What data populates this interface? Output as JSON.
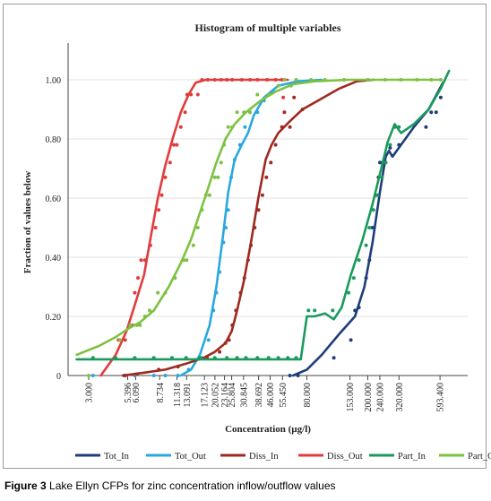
{
  "caption": {
    "label": "Figure 3",
    "text": "Lake Ellyn CFPs for zinc concentration inflow/outflow values"
  },
  "colors": {
    "Tot_In": "#1f3d7a",
    "Tot_Out": "#29a8e0",
    "Diss_In": "#9e2a20",
    "Diss_Out": "#e23b3b",
    "Part_In": "#1a9a5c",
    "Part_Out": "#7dc242"
  },
  "chart_data": {
    "type": "line",
    "title": "Histogram of multiple variables",
    "xlabel": "Concentration (µg/l)",
    "ylabel": "Fraction of values below",
    "x_scale": "log",
    "xlim": [
      2.2,
      900
    ],
    "ylim": [
      0,
      1.1
    ],
    "grid": "horizontal",
    "legend_position": "bottom",
    "x_ticks": [
      "3.000",
      "5.396",
      "6.090",
      "8.734",
      "11.318",
      "13.091",
      "17.123",
      "20.052",
      "23.164",
      "25.804",
      "30.845",
      "38.692",
      "46.000",
      "55.450",
      "80.000",
      "153.000",
      "200.000",
      "240.000",
      "320.000",
      "593.400"
    ],
    "x_tick_values": [
      3.0,
      5.396,
      6.09,
      8.734,
      11.318,
      13.091,
      17.123,
      20.052,
      23.164,
      25.804,
      30.845,
      38.692,
      46.0,
      55.45,
      80.0,
      153.0,
      200.0,
      240.0,
      320.0,
      593.4
    ],
    "y_ticks": [
      "0",
      "0.20",
      "0.40",
      "0.60",
      "0.80",
      "1.00"
    ],
    "y_tick_values": [
      0,
      0.2,
      0.4,
      0.6,
      0.8,
      1.0
    ],
    "series": [
      {
        "name": "Tot_In",
        "line": [
          [
            65,
            0
          ],
          [
            80,
            0.02
          ],
          [
            100,
            0.07
          ],
          [
            130,
            0.14
          ],
          [
            165,
            0.2
          ],
          [
            190,
            0.3
          ],
          [
            215,
            0.45
          ],
          [
            240,
            0.62
          ],
          [
            262,
            0.74
          ],
          [
            275,
            0.76
          ],
          [
            290,
            0.74
          ],
          [
            330,
            0.78
          ],
          [
            400,
            0.84
          ],
          [
            500,
            0.9
          ],
          [
            620,
            0.99
          ]
        ],
        "points": [
          [
            62,
            0
          ],
          [
            70,
            0
          ],
          [
            120,
            0.06
          ],
          [
            155,
            0.12
          ],
          [
            165,
            0.22
          ],
          [
            175,
            0.23
          ],
          [
            195,
            0.33
          ],
          [
            205,
            0.39
          ],
          [
            215,
            0.5
          ],
          [
            225,
            0.61
          ],
          [
            235,
            0.67
          ],
          [
            240,
            0.72
          ],
          [
            250,
            0.72
          ],
          [
            280,
            0.77
          ],
          [
            320,
            0.78
          ],
          [
            480,
            0.84
          ],
          [
            520,
            0.89
          ],
          [
            560,
            0.89
          ],
          [
            600,
            0.94
          ]
        ]
      },
      {
        "name": "Tot_Out",
        "line": [
          [
            12,
            0
          ],
          [
            14,
            0.02
          ],
          [
            16,
            0.07
          ],
          [
            18.5,
            0.17
          ],
          [
            20.5,
            0.3
          ],
          [
            22.5,
            0.46
          ],
          [
            24.5,
            0.62
          ],
          [
            27,
            0.73
          ],
          [
            30,
            0.78
          ],
          [
            33,
            0.82
          ],
          [
            36,
            0.88
          ],
          [
            42,
            0.94
          ],
          [
            52,
            0.98
          ],
          [
            70,
            0.995
          ],
          [
            100,
            1.0
          ]
        ],
        "points": [
          [
            3.2,
            0
          ],
          [
            5.1,
            0
          ],
          [
            6.0,
            0
          ],
          [
            8.0,
            0
          ],
          [
            9.5,
            0
          ],
          [
            11.5,
            0
          ],
          [
            13.5,
            0.02
          ],
          [
            16.5,
            0.06
          ],
          [
            18.2,
            0.12
          ],
          [
            19.6,
            0.22
          ],
          [
            20.5,
            0.28
          ],
          [
            21.5,
            0.35
          ],
          [
            22.8,
            0.45
          ],
          [
            23.6,
            0.5
          ],
          [
            24.5,
            0.56
          ],
          [
            25.6,
            0.67
          ],
          [
            27,
            0.73
          ],
          [
            29.2,
            0.78
          ],
          [
            31.5,
            0.84
          ],
          [
            34,
            0.89
          ],
          [
            38,
            0.89
          ],
          [
            42,
            0.93
          ],
          [
            48,
            0.96
          ]
        ]
      },
      {
        "name": "Diss_In",
        "line": [
          [
            5,
            0
          ],
          [
            7,
            0.01
          ],
          [
            9.5,
            0.02
          ],
          [
            13,
            0.04
          ],
          [
            17,
            0.06
          ],
          [
            20,
            0.08
          ],
          [
            23.5,
            0.11
          ],
          [
            25.8,
            0.15
          ],
          [
            28,
            0.22
          ],
          [
            31,
            0.32
          ],
          [
            34.5,
            0.45
          ],
          [
            38.5,
            0.6
          ],
          [
            43,
            0.73
          ],
          [
            47,
            0.78
          ],
          [
            52,
            0.82
          ],
          [
            62,
            0.86
          ],
          [
            75,
            0.9
          ],
          [
            95,
            0.93
          ],
          [
            130,
            0.97
          ],
          [
            170,
            0.995
          ],
          [
            220,
            1.0
          ]
        ],
        "points": [
          [
            5.2,
            0
          ],
          [
            6.2,
            0.005
          ],
          [
            8.6,
            0.02
          ],
          [
            11.5,
            0.03
          ],
          [
            14.5,
            0.05
          ],
          [
            17.8,
            0.06
          ],
          [
            21.5,
            0.08
          ],
          [
            23.5,
            0.11
          ],
          [
            24.8,
            0.12
          ],
          [
            26,
            0.17
          ],
          [
            27.5,
            0.22
          ],
          [
            29.5,
            0.28
          ],
          [
            31.2,
            0.33
          ],
          [
            33,
            0.39
          ],
          [
            34.5,
            0.44
          ],
          [
            36.5,
            0.5
          ],
          [
            38.6,
            0.56
          ],
          [
            41,
            0.61
          ],
          [
            43.5,
            0.67
          ],
          [
            46.5,
            0.72
          ],
          [
            50,
            0.78
          ],
          [
            55,
            0.84
          ],
          [
            57,
            0.89
          ],
          [
            62,
            0.84
          ],
          [
            66,
            0.94
          ],
          [
            75,
            0.9
          ]
        ]
      },
      {
        "name": "Diss_Out",
        "line": [
          [
            3.6,
            0
          ],
          [
            4.5,
            0.07
          ],
          [
            5.3,
            0.15
          ],
          [
            6.1,
            0.25
          ],
          [
            6.9,
            0.34
          ],
          [
            7.7,
            0.48
          ],
          [
            8.5,
            0.6
          ],
          [
            9.5,
            0.71
          ],
          [
            10.6,
            0.8
          ],
          [
            12,
            0.89
          ],
          [
            13.5,
            0.95
          ],
          [
            15,
            0.99
          ],
          [
            17.5,
            1.0
          ],
          [
            30,
            1.0
          ],
          [
            60,
            1.0
          ]
        ],
        "points": [
          [
            4.7,
            0.12
          ],
          [
            5.2,
            0.12
          ],
          [
            5.8,
            0.17
          ],
          [
            6.0,
            0.28
          ],
          [
            6.3,
            0.33
          ],
          [
            6.6,
            0.39
          ],
          [
            7.0,
            0.39
          ],
          [
            7.6,
            0.44
          ],
          [
            8.2,
            0.5
          ],
          [
            8.6,
            0.56
          ],
          [
            9.0,
            0.61
          ],
          [
            9.5,
            0.67
          ],
          [
            10.2,
            0.72
          ],
          [
            10.8,
            0.78
          ],
          [
            11.3,
            0.78
          ],
          [
            12.0,
            0.84
          ],
          [
            12.8,
            0.89
          ],
          [
            13.2,
            0.95
          ],
          [
            14.0,
            0.95
          ],
          [
            15.5,
            0.95
          ],
          [
            16.5,
            1.0
          ],
          [
            18,
            1.0
          ],
          [
            20,
            1.0
          ],
          [
            22,
            1.0
          ],
          [
            24,
            1.0
          ],
          [
            26,
            1.0
          ],
          [
            30,
            1.0
          ],
          [
            34,
            1.0
          ],
          [
            38,
            1.0
          ],
          [
            44,
            1.0
          ],
          [
            50,
            1.0
          ],
          [
            55,
            1.0
          ],
          [
            56,
            0.94
          ]
        ]
      },
      {
        "name": "Part_In",
        "line": [
          [
            2.5,
            0.055
          ],
          [
            10,
            0.055
          ],
          [
            40,
            0.055
          ],
          [
            73,
            0.055
          ],
          [
            80,
            0.2
          ],
          [
            90,
            0.2
          ],
          [
            105,
            0.21
          ],
          [
            120,
            0.19
          ],
          [
            135,
            0.23
          ],
          [
            155,
            0.34
          ],
          [
            185,
            0.46
          ],
          [
            215,
            0.58
          ],
          [
            245,
            0.7
          ],
          [
            270,
            0.79
          ],
          [
            300,
            0.85
          ],
          [
            330,
            0.82
          ],
          [
            400,
            0.85
          ],
          [
            500,
            0.9
          ],
          [
            600,
            0.97
          ],
          [
            680,
            1.03
          ]
        ],
        "points": [
          [
            3.2,
            0.06
          ],
          [
            4.5,
            0.06
          ],
          [
            6.0,
            0.06
          ],
          [
            8.0,
            0.06
          ],
          [
            10.5,
            0.06
          ],
          [
            13,
            0.06
          ],
          [
            16,
            0.06
          ],
          [
            20,
            0.06
          ],
          [
            24,
            0.06
          ],
          [
            28,
            0.06
          ],
          [
            32,
            0.06
          ],
          [
            38,
            0.06
          ],
          [
            45,
            0.06
          ],
          [
            52,
            0.06
          ],
          [
            60,
            0.06
          ],
          [
            68,
            0.06
          ],
          [
            82,
            0.22
          ],
          [
            90,
            0.22
          ],
          [
            118,
            0.22
          ],
          [
            150,
            0.28
          ],
          [
            162,
            0.33
          ],
          [
            175,
            0.39
          ],
          [
            195,
            0.44
          ],
          [
            205,
            0.5
          ],
          [
            218,
            0.56
          ],
          [
            232,
            0.61
          ],
          [
            248,
            0.67
          ],
          [
            262,
            0.72
          ],
          [
            280,
            0.78
          ],
          [
            300,
            0.84
          ],
          [
            320,
            0.84
          ]
        ]
      },
      {
        "name": "Part_Out",
        "line": [
          [
            2.5,
            0.07
          ],
          [
            3.5,
            0.1
          ],
          [
            4.5,
            0.13
          ],
          [
            5.5,
            0.16
          ],
          [
            6.5,
            0.18
          ],
          [
            8,
            0.22
          ],
          [
            10,
            0.3
          ],
          [
            12,
            0.38
          ],
          [
            14,
            0.46
          ],
          [
            16,
            0.55
          ],
          [
            18,
            0.63
          ],
          [
            20.5,
            0.72
          ],
          [
            23.5,
            0.8
          ],
          [
            27,
            0.85
          ],
          [
            32,
            0.89
          ],
          [
            40,
            0.93
          ],
          [
            50,
            0.96
          ],
          [
            65,
            0.985
          ],
          [
            90,
            0.995
          ],
          [
            150,
            1.0
          ],
          [
            300,
            1.0
          ],
          [
            600,
            1.0
          ]
        ],
        "points": [
          [
            3.0,
            0.0
          ],
          [
            4.8,
            0.12
          ],
          [
            5.6,
            0.17
          ],
          [
            6.2,
            0.17
          ],
          [
            6.5,
            0.17
          ],
          [
            7.0,
            0.2
          ],
          [
            7.5,
            0.22
          ],
          [
            8.5,
            0.28
          ],
          [
            9.5,
            0.28
          ],
          [
            11,
            0.33
          ],
          [
            12.5,
            0.39
          ],
          [
            13.1,
            0.39
          ],
          [
            14.5,
            0.44
          ],
          [
            15.5,
            0.5
          ],
          [
            16.5,
            0.56
          ],
          [
            17.5,
            0.61
          ],
          [
            18.5,
            0.61
          ],
          [
            20,
            0.67
          ],
          [
            21,
            0.67
          ],
          [
            22,
            0.72
          ],
          [
            23,
            0.78
          ],
          [
            24.5,
            0.84
          ],
          [
            26,
            0.84
          ],
          [
            28,
            0.89
          ],
          [
            31,
            0.89
          ],
          [
            34,
            0.89
          ],
          [
            38,
            0.95
          ],
          [
            45,
            0.95
          ],
          [
            52,
            0.98
          ],
          [
            57,
            1.0
          ],
          [
            63,
            0.98
          ],
          [
            68,
            1.0
          ],
          [
            85,
            1.0
          ],
          [
            105,
            1.0
          ],
          [
            140,
            1.0
          ],
          [
            200,
            1.0
          ],
          [
            260,
            1.0
          ],
          [
            330,
            1.0
          ],
          [
            420,
            1.0
          ],
          [
            520,
            1.0
          ],
          [
            600,
            1.0
          ]
        ]
      }
    ]
  }
}
